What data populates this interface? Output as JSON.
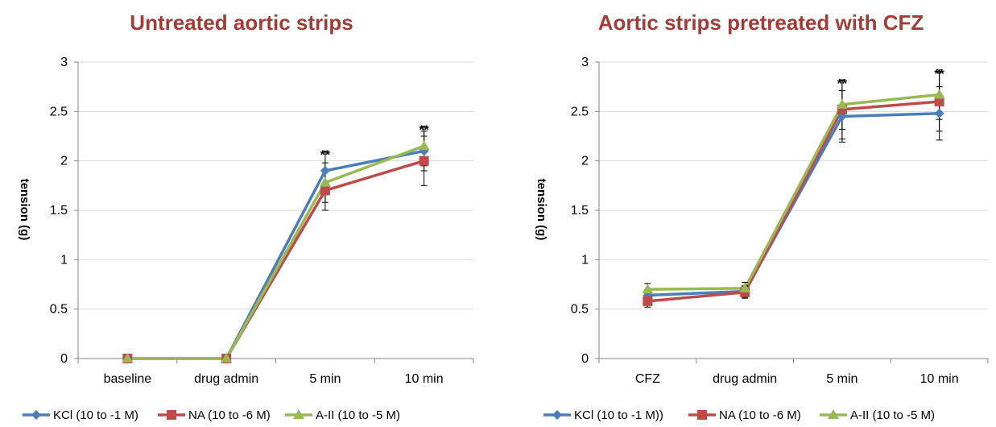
{
  "colors": {
    "title": "#A33B36",
    "KCl": "#4A7EBB",
    "NA": "#BE4B48",
    "AII": "#98B954",
    "axis": "#868686",
    "grid": "#D9D9D9",
    "error": "#000000"
  },
  "chart_data": [
    {
      "type": "line",
      "title": "Untreated aortic strips",
      "xlabel": "",
      "ylabel": "tension (g)",
      "ylim": [
        0,
        3
      ],
      "yticks": [
        "0",
        "0.5",
        "1",
        "1.5",
        "2",
        "2.5",
        "3"
      ],
      "grid": "horizontal",
      "legend_position": "bottom",
      "categories": [
        "baseline",
        "drug admin",
        "5 min",
        "10 min"
      ],
      "series": [
        {
          "name": "KCl (10 to -1 M)",
          "key": "KCl",
          "marker": "diamond",
          "values": [
            null,
            0,
            1.9,
            2.1
          ],
          "errors": [
            null,
            0,
            0.2,
            0.2
          ]
        },
        {
          "name": "NA (10 to -6 M)",
          "key": "NA",
          "marker": "square",
          "values": [
            0,
            0,
            1.7,
            2.0
          ],
          "errors": [
            0,
            0,
            0.2,
            0.25
          ]
        },
        {
          "name": "A-II (10 to -5 M)",
          "key": "AII",
          "marker": "triangle",
          "values": [
            0,
            0,
            1.78,
            2.15
          ],
          "errors": [
            0,
            0,
            0.2,
            0.2
          ]
        }
      ],
      "annotations": [
        {
          "category": "5 min",
          "text": "**"
        },
        {
          "category": "10 min",
          "text": "**"
        }
      ]
    },
    {
      "type": "line",
      "title": "Aortic strips pretreated with CFZ",
      "xlabel": "",
      "ylabel": "tension (g)",
      "ylim": [
        0,
        3
      ],
      "yticks": [
        "0",
        "0.5",
        "1",
        "1.5",
        "2",
        "2.5",
        "3"
      ],
      "grid": "horizontal",
      "legend_position": "bottom",
      "categories": [
        "CFZ",
        "drug admin",
        "5 min",
        "10 min"
      ],
      "series": [
        {
          "name": "KCl (10 to -1 M))",
          "key": "KCl",
          "marker": "diamond",
          "values": [
            0.64,
            0.68,
            2.45,
            2.48
          ],
          "errors": [
            0.06,
            0.06,
            0.26,
            0.27
          ]
        },
        {
          "name": "NA (10 to -6 M)",
          "key": "NA",
          "marker": "square",
          "values": [
            0.58,
            0.67,
            2.52,
            2.6
          ],
          "errors": [
            0.06,
            0.06,
            0.3,
            0.3
          ]
        },
        {
          "name": "A-II (10 to -5 M)",
          "key": "AII",
          "marker": "triangle",
          "values": [
            0.7,
            0.71,
            2.57,
            2.67
          ],
          "errors": [
            0.06,
            0.06,
            0.25,
            0.25
          ]
        }
      ],
      "annotations": [
        {
          "category": "5 min",
          "text": "**"
        },
        {
          "category": "10 min",
          "text": "**"
        }
      ]
    }
  ]
}
